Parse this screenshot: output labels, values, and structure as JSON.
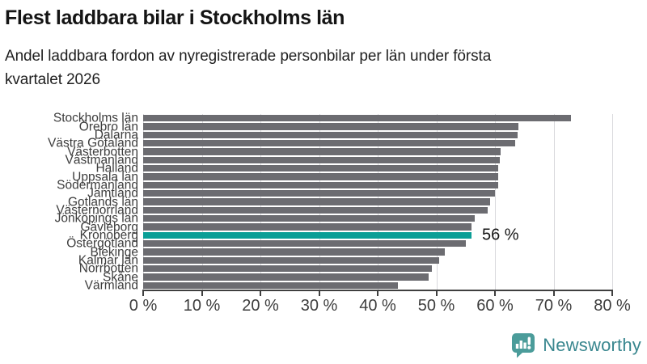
{
  "header": {
    "title": "Flest laddbara bilar i Stockholms län",
    "subtitle_lines": [
      "Andel laddbara fordon av nyregistrerade personbilar per län under första",
      "kvartalet 2026"
    ]
  },
  "chart_data": {
    "type": "bar",
    "orientation": "horizontal",
    "title": "Flest laddbara bilar i Stockholms län",
    "subtitle": "Andel laddbara fordon av nyregistrerade personbilar per län under första kvartalet 2026",
    "categories": [
      "Stockholms län",
      "Örebro län",
      "Dalarna",
      "Västra Götaland",
      "Västerbotten",
      "Västmanland",
      "Halland",
      "Uppsala län",
      "Södermanland",
      "Jämtland",
      "Gotlands län",
      "Västernorrland",
      "Jönköpings län",
      "Gävleborg",
      "Kronoberg",
      "Östergötland",
      "Blekinge",
      "Kalmar län",
      "Norrbotten",
      "Skåne",
      "Värmland"
    ],
    "values": [
      73,
      64,
      63.8,
      63.4,
      61,
      60.8,
      60.6,
      60.6,
      60.5,
      60,
      59.2,
      58.7,
      56.5,
      56,
      56,
      55,
      51.5,
      50.5,
      49.2,
      48.7,
      43.5
    ],
    "unit": "%",
    "xlim": [
      0,
      80
    ],
    "xlabel_ticks": [
      "0 %",
      "10 %",
      "20 %",
      "30 %",
      "40 %",
      "50 %",
      "60 %",
      "70 %",
      "80 %"
    ],
    "grid": "vertical",
    "legend": "none",
    "highlight": {
      "category": "Kronoberg",
      "index": 14,
      "value": 56,
      "value_label": "56 %"
    },
    "colors": {
      "bar": "#6c6c71",
      "highlight": "#0a9e96",
      "gridline": "#d9d9dd",
      "axis": "#3f3f3f"
    }
  },
  "footer": {
    "brand": "Newsworthy",
    "brand_text_color": "#38868e",
    "brand_icon_color": "#4b9c9a"
  }
}
